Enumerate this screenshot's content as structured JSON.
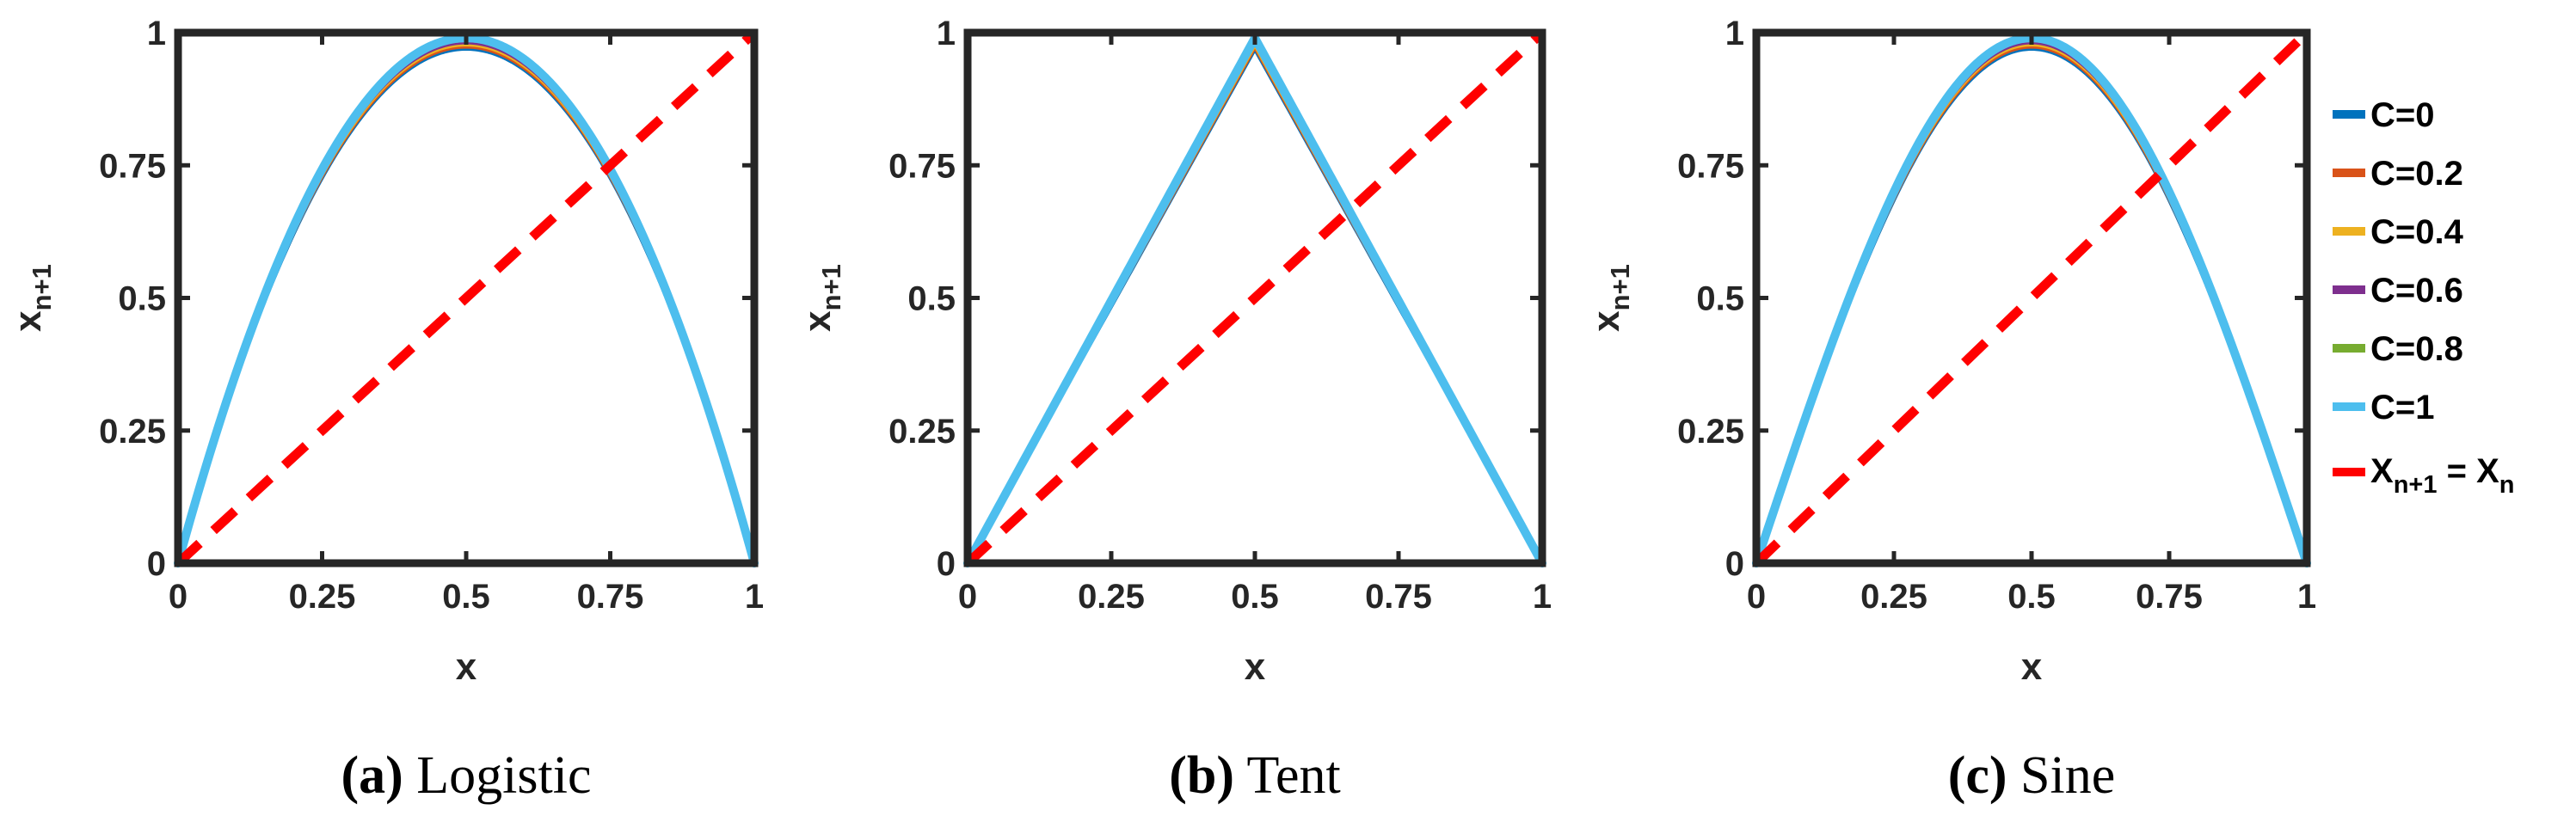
{
  "chart_data": [
    {
      "type": "line",
      "map": "logistic",
      "caption_tag": "(a)",
      "caption_name": "Logistic",
      "xlabel": "x",
      "ylabel_main": "x",
      "ylabel_sub": "n+1",
      "xlim": [
        0,
        1
      ],
      "ylim": [
        0,
        1
      ],
      "xticks": [
        0,
        0.25,
        0.5,
        0.75,
        1
      ],
      "yticks": [
        0,
        0.25,
        0.5,
        0.75,
        1
      ],
      "xtick_labels": [
        "0",
        "0.25",
        "0.5",
        "0.75",
        "1"
      ],
      "ytick_labels": [
        "0",
        "0.25",
        "0.5",
        "0.75",
        "1"
      ],
      "peak_values": [
        0.97,
        0.974,
        0.978,
        0.982,
        0.986,
        0.99
      ]
    },
    {
      "type": "line",
      "map": "tent",
      "caption_tag": "(b)",
      "caption_name": "Tent",
      "xlabel": "x",
      "ylabel_main": "x",
      "ylabel_sub": "n+1",
      "xlim": [
        0,
        1
      ],
      "ylim": [
        0,
        1
      ],
      "xticks": [
        0,
        0.25,
        0.5,
        0.75,
        1
      ],
      "yticks": [
        0,
        0.25,
        0.5,
        0.75,
        1
      ],
      "xtick_labels": [
        "0",
        "0.25",
        "0.5",
        "0.75",
        "1"
      ],
      "ytick_labels": [
        "0",
        "0.25",
        "0.5",
        "0.75",
        "1"
      ],
      "peak_values": [
        0.97,
        0.974,
        0.978,
        0.982,
        0.986,
        0.99
      ]
    },
    {
      "type": "line",
      "map": "sine",
      "caption_tag": "(c)",
      "caption_name": "Sine",
      "xlabel": "x",
      "ylabel_main": "x",
      "ylabel_sub": "n+1",
      "xlim": [
        0,
        1
      ],
      "ylim": [
        0,
        1
      ],
      "xticks": [
        0,
        0.25,
        0.5,
        0.75,
        1
      ],
      "yticks": [
        0,
        0.25,
        0.5,
        0.75,
        1
      ],
      "xtick_labels": [
        "0",
        "0.25",
        "0.5",
        "0.75",
        "1"
      ],
      "ytick_labels": [
        "0",
        "0.25",
        "0.5",
        "0.75",
        "1"
      ],
      "peak_values": [
        0.97,
        0.974,
        0.978,
        0.982,
        0.986,
        0.99
      ]
    }
  ],
  "series": [
    {
      "name": "C=0",
      "color": "#0072BD"
    },
    {
      "name": "C=0.2",
      "color": "#D95319"
    },
    {
      "name": "C=0.4",
      "color": "#EDB120"
    },
    {
      "name": "C=0.6",
      "color": "#7E2F8E"
    },
    {
      "name": "C=0.8",
      "color": "#77AC30"
    },
    {
      "name": "C=1",
      "color": "#4DBEEE"
    }
  ],
  "diagonal": {
    "main_left": "X",
    "sub_left": "n+1",
    "equals": " = ",
    "main_right": "X",
    "sub_right": "n",
    "color": "#FF0000",
    "x": [
      0,
      1
    ],
    "y": [
      0,
      1
    ]
  },
  "legend_placement": "right of panel (c)"
}
